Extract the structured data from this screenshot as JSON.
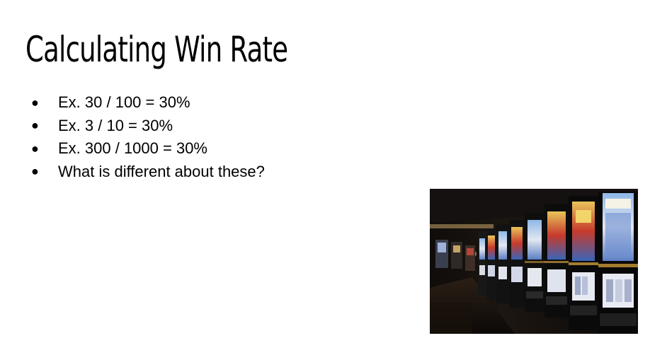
{
  "slide": {
    "title": "Calculating Win Rate",
    "bullets": [
      "Ex. 30 / 100 = 30%",
      "Ex. 3 / 10 = 30%",
      "Ex. 300 / 1000 = 30%",
      "What is different about these?"
    ],
    "bullet_glyph": "●"
  },
  "colors": {
    "background": "#ffffff",
    "text": "#000000"
  }
}
